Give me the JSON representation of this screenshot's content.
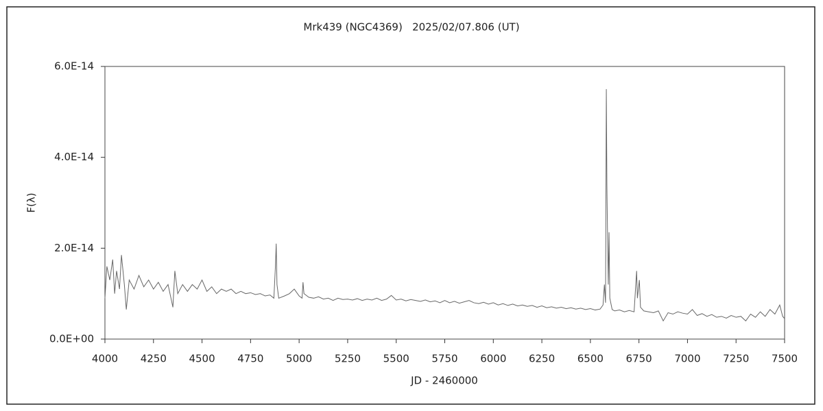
{
  "chart_data": {
    "type": "line",
    "title": "Mrk439 (NGC4369)   2025/02/07.806 (UT)",
    "xlabel": "JD - 2460000",
    "ylabel": "F(λ)",
    "xlim": [
      4000,
      7500
    ],
    "xticks": [
      4000,
      4250,
      4500,
      4750,
      5000,
      5250,
      5500,
      5750,
      6000,
      6250,
      6500,
      6750,
      7000,
      7250,
      7500
    ],
    "ylim": [
      0,
      6e-14
    ],
    "yticks": [
      {
        "value": 0,
        "label": "0.0E+00"
      },
      {
        "value": 2e-14,
        "label": "2.0E-14"
      },
      {
        "value": 4e-14,
        "label": "4.0E-14"
      },
      {
        "value": 6e-14,
        "label": "6.0E-14"
      }
    ],
    "grid": false,
    "series": [
      {
        "color": "#666666",
        "x": [
          4000,
          4010,
          4025,
          4040,
          4050,
          4060,
          4075,
          4085,
          4100,
          4110,
          4125,
          4150,
          4175,
          4200,
          4225,
          4250,
          4275,
          4300,
          4325,
          4350,
          4360,
          4375,
          4400,
          4425,
          4450,
          4475,
          4500,
          4525,
          4550,
          4575,
          4600,
          4625,
          4650,
          4675,
          4700,
          4725,
          4750,
          4775,
          4800,
          4825,
          4850,
          4870,
          4878,
          4882,
          4886,
          4895,
          4925,
          4950,
          4975,
          5000,
          5015,
          5020,
          5025,
          5050,
          5075,
          5100,
          5125,
          5150,
          5175,
          5200,
          5225,
          5250,
          5275,
          5300,
          5325,
          5350,
          5375,
          5400,
          5425,
          5450,
          5475,
          5500,
          5525,
          5550,
          5575,
          5600,
          5625,
          5650,
          5675,
          5700,
          5725,
          5750,
          5775,
          5800,
          5825,
          5850,
          5875,
          5900,
          5925,
          5950,
          5975,
          6000,
          6025,
          6050,
          6075,
          6100,
          6125,
          6150,
          6175,
          6200,
          6225,
          6250,
          6275,
          6300,
          6325,
          6350,
          6375,
          6400,
          6425,
          6450,
          6475,
          6500,
          6525,
          6550,
          6565,
          6572,
          6578,
          6582,
          6585,
          6588,
          6592,
          6596,
          6600,
          6612,
          6625,
          6650,
          6675,
          6700,
          6725,
          6738,
          6742,
          6752,
          6758,
          6775,
          6800,
          6825,
          6850,
          6875,
          6900,
          6925,
          6950,
          6975,
          7000,
          7025,
          7050,
          7075,
          7100,
          7125,
          7150,
          7175,
          7200,
          7225,
          7250,
          7275,
          7300,
          7325,
          7350,
          7375,
          7400,
          7425,
          7450,
          7475,
          7490,
          7500
        ],
        "values": [
          9e-15,
          1.6e-14,
          1.3e-14,
          1.75e-14,
          1e-14,
          1.5e-14,
          1.1e-14,
          1.85e-14,
          1.2e-14,
          6.5e-15,
          1.3e-14,
          1.1e-14,
          1.4e-14,
          1.15e-14,
          1.3e-14,
          1.1e-14,
          1.25e-14,
          1.05e-14,
          1.2e-14,
          7e-15,
          1.5e-14,
          1e-14,
          1.2e-14,
          1.05e-14,
          1.2e-14,
          1.1e-14,
          1.3e-14,
          1.05e-14,
          1.15e-14,
          1e-14,
          1.1e-14,
          1.05e-14,
          1.1e-14,
          1e-14,
          1.05e-14,
          1e-14,
          1.02e-14,
          9.8e-15,
          1e-14,
          9.5e-15,
          9.7e-15,
          9e-15,
          1.6e-14,
          2.1e-14,
          1.2e-14,
          9e-15,
          9.5e-15,
          1e-14,
          1.1e-14,
          9.5e-15,
          9e-15,
          1.25e-14,
          1e-14,
          9.2e-15,
          9e-15,
          9.3e-15,
          8.8e-15,
          9e-15,
          8.5e-15,
          9e-15,
          8.7e-15,
          8.8e-15,
          8.6e-15,
          8.9e-15,
          8.5e-15,
          8.8e-15,
          8.6e-15,
          9e-15,
          8.5e-15,
          8.8e-15,
          9.6e-15,
          8.6e-15,
          8.8e-15,
          8.4e-15,
          8.7e-15,
          8.5e-15,
          8.3e-15,
          8.6e-15,
          8.2e-15,
          8.4e-15,
          8e-15,
          8.5e-15,
          8e-15,
          8.3e-15,
          7.9e-15,
          8.2e-15,
          8.5e-15,
          8e-15,
          7.8e-15,
          8.1e-15,
          7.7e-15,
          8e-15,
          7.5e-15,
          7.8e-15,
          7.4e-15,
          7.7e-15,
          7.3e-15,
          7.5e-15,
          7.2e-15,
          7.4e-15,
          7e-15,
          7.3e-15,
          6.9e-15,
          7.1e-15,
          6.8e-15,
          7e-15,
          6.7e-15,
          6.9e-15,
          6.6e-15,
          6.8e-15,
          6.5e-15,
          6.7e-15,
          6.4e-15,
          6.6e-15,
          7.5e-15,
          1.2e-14,
          8e-15,
          5.5e-14,
          3.4e-14,
          2.4e-14,
          1.2e-14,
          2.35e-14,
          9e-15,
          6.5e-15,
          6.2e-15,
          6.4e-15,
          6e-15,
          6.3e-15,
          6e-15,
          1.5e-14,
          9e-15,
          1.3e-14,
          7e-15,
          6.2e-15,
          6e-15,
          5.8e-15,
          6.2e-15,
          4e-15,
          5.8e-15,
          5.5e-15,
          6e-15,
          5.7e-15,
          5.5e-15,
          6.5e-15,
          5.2e-15,
          5.6e-15,
          5e-15,
          5.4e-15,
          4.8e-15,
          5e-15,
          4.6e-15,
          5.2e-15,
          4.8e-15,
          5e-15,
          4e-15,
          5.5e-15,
          4.8e-15,
          6e-15,
          5e-15,
          6.5e-15,
          5.5e-15,
          7.5e-15,
          5e-15,
          4.5e-15
        ]
      }
    ]
  }
}
